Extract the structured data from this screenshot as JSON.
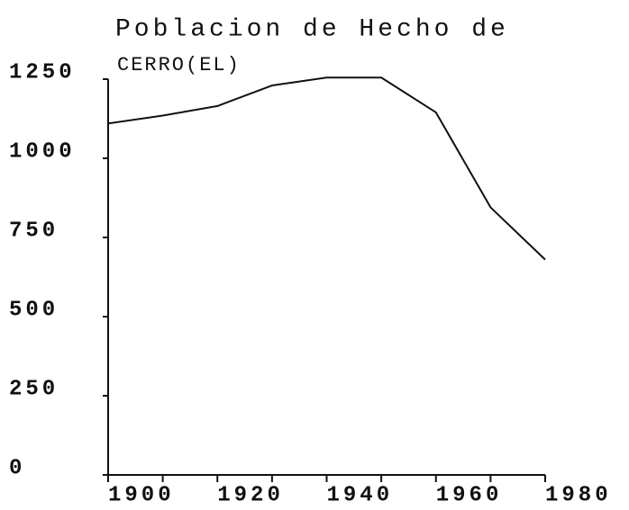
{
  "chart_data": {
    "type": "line",
    "title": "Poblacion de Hecho de",
    "subtitle": "CERRO(EL)",
    "x": [
      1900,
      1910,
      1920,
      1930,
      1940,
      1950,
      1960,
      1970,
      1980
    ],
    "series": [
      {
        "name": "CERRO(EL)",
        "color": "#111111",
        "values": [
          1110,
          1135,
          1165,
          1230,
          1255,
          1255,
          1145,
          845,
          680
        ]
      }
    ],
    "xlim": [
      1900,
      1980
    ],
    "xticks": [
      1900,
      1920,
      1940,
      1960,
      1980
    ],
    "xminor_ticks": [
      1910,
      1930,
      1950,
      1970
    ],
    "ylim": [
      0,
      1250
    ],
    "yticks": [
      0,
      250,
      500,
      750,
      1000,
      1250
    ],
    "grid": false
  }
}
